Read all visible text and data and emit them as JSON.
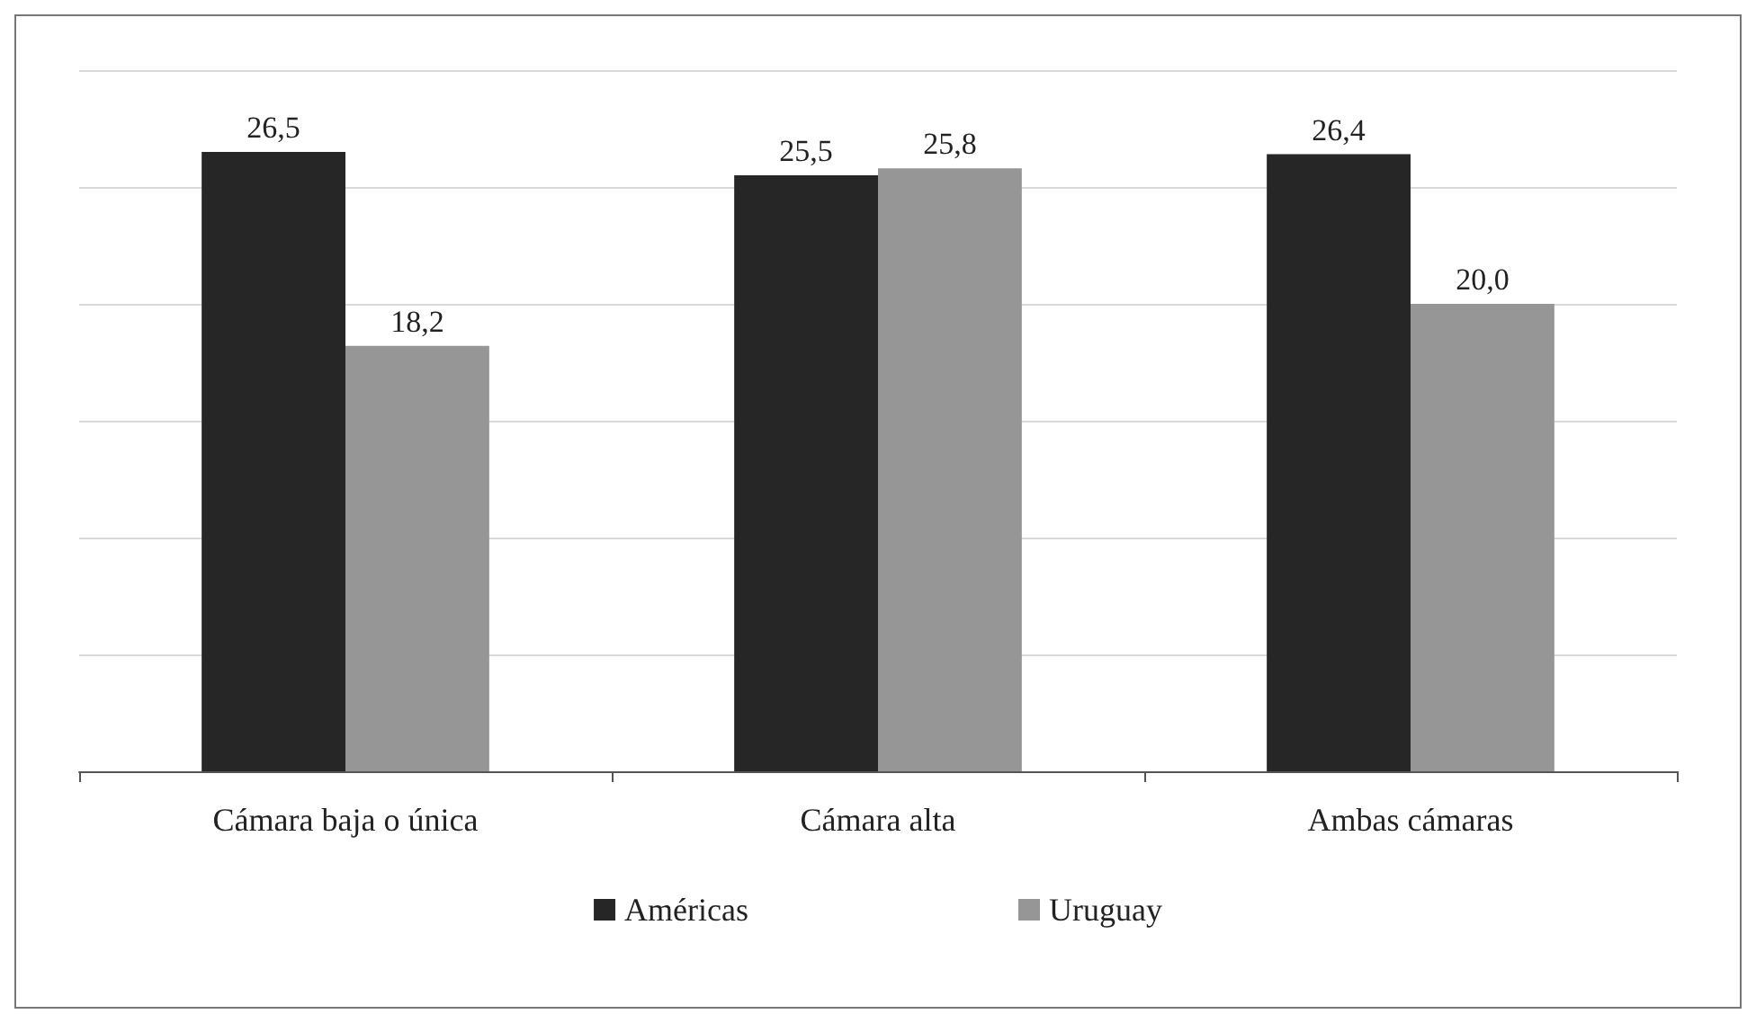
{
  "chart_data": {
    "type": "bar",
    "categories": [
      "Cámara baja o única",
      "Cámara alta",
      "Ambas cámaras"
    ],
    "series": [
      {
        "name": "Américas",
        "color": "#262626",
        "values": [
          26.5,
          25.5,
          26.4
        ],
        "value_labels": [
          "26,5",
          "25,5",
          "26,4"
        ]
      },
      {
        "name": "Uruguay",
        "color": "#969696",
        "values": [
          18.2,
          25.8,
          20.0
        ],
        "value_labels": [
          "18,2",
          "25,8",
          "20,0"
        ]
      }
    ],
    "ylim": [
      0,
      30
    ],
    "yticks": [
      0,
      5,
      10,
      15,
      20,
      25,
      30
    ],
    "tick_labels": "x",
    "grid": "y",
    "legend": "bottom"
  }
}
